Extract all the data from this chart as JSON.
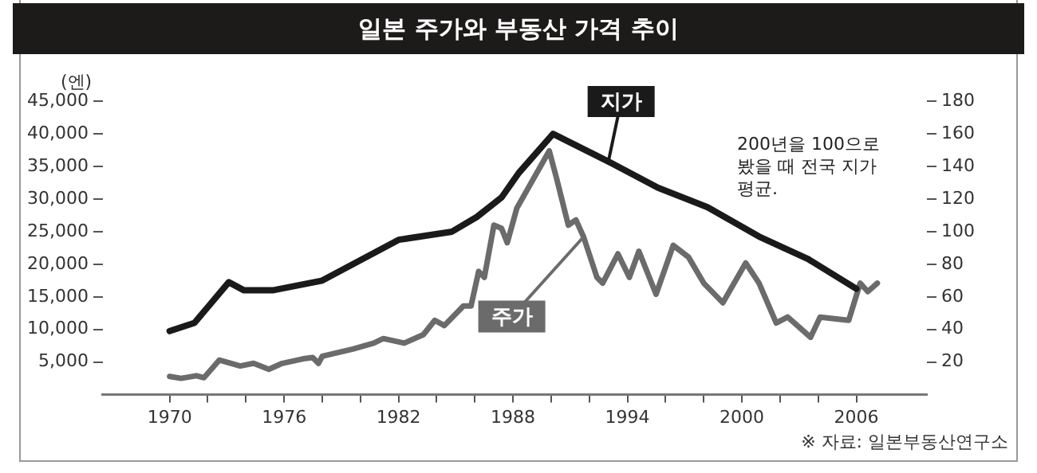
{
  "chart_data": {
    "type": "line",
    "title": "일본 주가와 부동산 가격 추이",
    "ylabel": "(엔)",
    "xlim": [
      1966.5,
      2009.7
    ],
    "xticks": [
      1970,
      {
        "value": 1972,
        "label": null
      },
      {
        "value": 1974,
        "label": null
      },
      1976,
      {
        "value": 1978,
        "label": null
      },
      {
        "value": 1980,
        "label": null
      },
      1982,
      {
        "value": 1984,
        "label": null
      },
      {
        "value": 1986,
        "label": null
      },
      1988,
      {
        "value": 1990,
        "label": null
      },
      {
        "value": 1992,
        "label": null
      },
      1994,
      {
        "value": 1996,
        "label": null
      },
      {
        "value": 1998,
        "label": null
      },
      2000,
      {
        "value": 2002,
        "label": null
      },
      {
        "value": 2004,
        "label": null
      },
      2006
    ],
    "ylim": [
      0,
      45000
    ],
    "yticks": [
      {
        "value": 5000,
        "label": "5,000"
      },
      {
        "value": 10000,
        "label": "10,000"
      },
      {
        "value": 15000,
        "label": "15,000"
      },
      {
        "value": 20000,
        "label": "20,000"
      },
      {
        "value": 25000,
        "label": "25,000"
      },
      {
        "value": 30000,
        "label": "30,000"
      },
      {
        "value": 35000,
        "label": "35,000"
      },
      {
        "value": 40000,
        "label": "40,000"
      },
      {
        "value": 45000,
        "label": "45,000"
      }
    ],
    "y2lim": [
      0,
      180
    ],
    "y2ticks": [
      20,
      40,
      60,
      80,
      100,
      120,
      140,
      160,
      180
    ],
    "legend": false,
    "series": [
      {
        "name": "지가",
        "color": "#1a1a1a",
        "axis": "y2",
        "x": [
          1970,
          1971.3,
          1973.1,
          1973.9,
          1975.4,
          1978,
          1982,
          1984.8,
          1986.1,
          1987.4,
          1988.3,
          1990.1,
          1993,
          1995.6,
          1998.2,
          2000.9,
          2003.5,
          2006
        ],
        "values": [
          39,
          44,
          69,
          64,
          64,
          70,
          95,
          100,
          109,
          121,
          136,
          160,
          143,
          127,
          115,
          97,
          83,
          65
        ]
      },
      {
        "name": "주가",
        "color": "#6b6b6b",
        "x": [
          1970,
          1970.6,
          1971.4,
          1971.8,
          1972.6,
          1973.7,
          1974.4,
          1975.2,
          1975.9,
          1977,
          1977.5,
          1977.8,
          1978,
          1979.6,
          1980.7,
          1981.2,
          1982.3,
          1983.3,
          1983.9,
          1984.4,
          1985.4,
          1985.8,
          1986.2,
          1986.5,
          1987,
          1987.4,
          1987.7,
          1988.2,
          1989.9,
          1990.3,
          1990.6,
          1990.9,
          1991.3,
          1991.7,
          1992.4,
          1992.7,
          1993.5,
          1994.1,
          1994.6,
          1995.5,
          1996.4,
          1997.2,
          1998,
          1999,
          2000.2,
          2000.9,
          2001.8,
          2002.4,
          2003.6,
          2004.1,
          2005.6,
          2006.2,
          2006.6,
          2007.1
        ],
        "values": [
          2800,
          2500,
          2900,
          2600,
          5300,
          4400,
          4800,
          3900,
          4800,
          5500,
          5700,
          4800,
          5900,
          7000,
          7900,
          8600,
          7900,
          9200,
          11400,
          10600,
          13600,
          13600,
          18900,
          18000,
          26000,
          25500,
          23300,
          28600,
          37400,
          33000,
          29500,
          26000,
          26800,
          24200,
          18000,
          17100,
          21600,
          18000,
          22000,
          15400,
          22900,
          21100,
          17100,
          14100,
          20200,
          17100,
          11000,
          11900,
          8800,
          11900,
          11400,
          17100,
          15800,
          17100
        ]
      }
    ],
    "annotations": [
      "200년을 100으로 봤을 때 전국 지가 평균.",
      "※ 자료: 일본부동산연구소"
    ]
  }
}
